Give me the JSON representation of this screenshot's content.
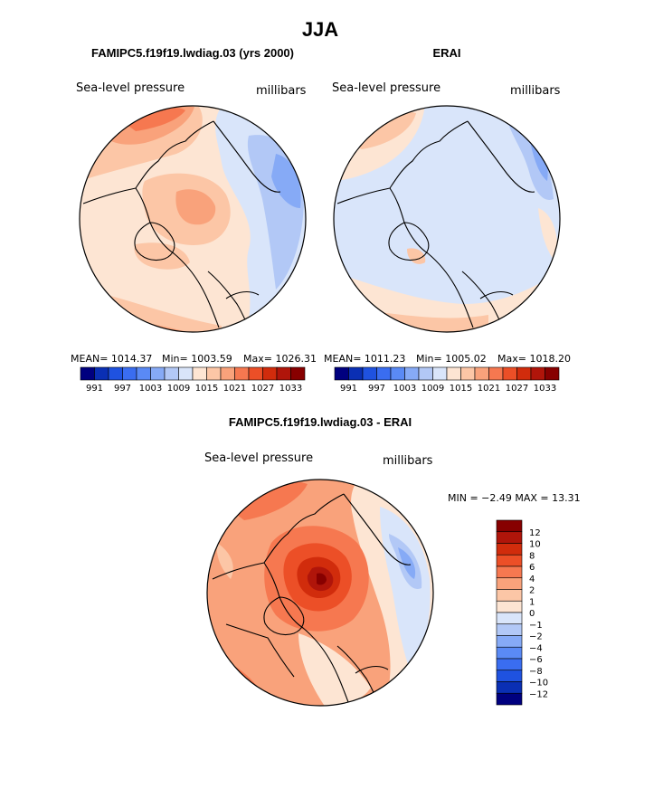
{
  "page": {
    "title": "JJA"
  },
  "chart_data": [
    {
      "type": "heatmap",
      "projection": "polar-stereographic",
      "title": "FAMIPC5.f19f19.lwdiag.03 (yrs 2000)",
      "left_label": "Sea-level pressure",
      "right_label": "millibars",
      "stats_text": {
        "mean": "MEAN= 1014.37",
        "min": "Min= 1003.59",
        "max": "Max= 1026.31"
      },
      "stats": {
        "mean": 1014.37,
        "min": 1003.59,
        "max": 1026.31
      },
      "colorbar_tick_labels": [
        "991",
        "997",
        "1003",
        "1009",
        "1015",
        "1021",
        "1027",
        "1033"
      ],
      "colorbar_levels": [
        991,
        994,
        997,
        1000,
        1003,
        1006,
        1009,
        1012,
        1015,
        1018,
        1021,
        1024,
        1027,
        1030,
        1033
      ]
    },
    {
      "type": "heatmap",
      "projection": "polar-stereographic",
      "title": "ERAI",
      "left_label": "Sea-level pressure",
      "right_label": "millibars",
      "stats_text": {
        "mean": "MEAN= 1011.23",
        "min": "Min= 1005.02",
        "max": "Max= 1018.20"
      },
      "stats": {
        "mean": 1011.23,
        "min": 1005.02,
        "max": 1018.2
      },
      "colorbar_tick_labels": [
        "991",
        "997",
        "1003",
        "1009",
        "1015",
        "1021",
        "1027",
        "1033"
      ],
      "colorbar_levels": [
        991,
        994,
        997,
        1000,
        1003,
        1006,
        1009,
        1012,
        1015,
        1018,
        1021,
        1024,
        1027,
        1030,
        1033
      ]
    },
    {
      "type": "heatmap",
      "projection": "polar-stereographic",
      "title": "FAMIPC5.f19f19.lwdiag.03 - ERAI",
      "left_label": "Sea-level pressure",
      "right_label": "millibars",
      "minmax_text": "MIN =  −2.49 MAX =  13.31",
      "stats": {
        "min": -2.49,
        "max": 13.31
      },
      "colorbar_tick_labels": [
        "12",
        "10",
        "8",
        "6",
        "4",
        "2",
        "1",
        "0",
        "−1",
        "−2",
        "−4",
        "−6",
        "−8",
        "−10",
        "−12"
      ],
      "colorbar_levels": [
        12,
        10,
        8,
        6,
        4,
        2,
        1,
        0,
        -1,
        -2,
        -4,
        -6,
        -8,
        -10,
        -12
      ]
    }
  ],
  "colors": {
    "palette": [
      "#00007f",
      "#0a2fb4",
      "#1f52e0",
      "#3a6df0",
      "#5a8af5",
      "#86aaf6",
      "#b2c8f6",
      "#d9e5fa",
      "#fde5d3",
      "#fcc6a6",
      "#f9a27b",
      "#f67850",
      "#ec4f27",
      "#d12c0c",
      "#b0150a",
      "#870000"
    ],
    "coast": "#000000"
  }
}
